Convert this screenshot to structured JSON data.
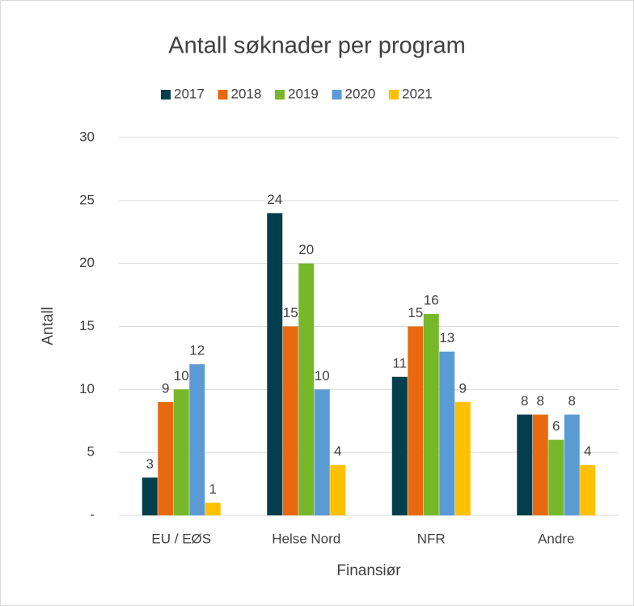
{
  "chart_data": {
    "type": "bar",
    "title": "Antall søknader per program",
    "x_label": "Finansiør",
    "y_label": "Antall",
    "categories": [
      "EU / EØS",
      "Helse Nord",
      "NFR",
      "Andre"
    ],
    "series": [
      {
        "name": "2017",
        "color": "#033e4d",
        "values": [
          3,
          24,
          11,
          8
        ]
      },
      {
        "name": "2018",
        "color": "#e8690f",
        "values": [
          9,
          15,
          15,
          8
        ]
      },
      {
        "name": "2019",
        "color": "#77b82a",
        "values": [
          10,
          20,
          16,
          6
        ]
      },
      {
        "name": "2020",
        "color": "#5b9bd5",
        "values": [
          12,
          10,
          13,
          8
        ]
      },
      {
        "name": "2021",
        "color": "#ffc000",
        "values": [
          1,
          4,
          9,
          4
        ]
      }
    ],
    "ylim": [
      0,
      30
    ],
    "yticks": [
      {
        "value": 0,
        "label": "-"
      },
      5,
      10,
      15,
      20,
      25,
      30
    ],
    "grid": true,
    "legend": "top"
  }
}
